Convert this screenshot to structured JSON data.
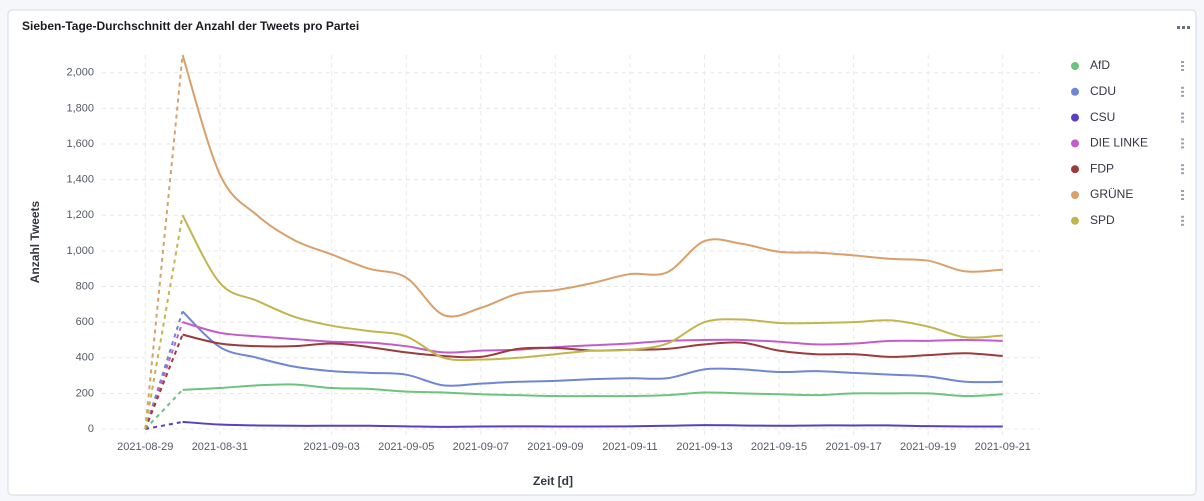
{
  "chart_data": {
    "type": "line",
    "title": "Sieben-Tage-Durchschnitt der Anzahl der Tweets pro Partei",
    "xlabel": "Zeit [d]",
    "ylabel": "Anzahl Tweets",
    "x": [
      "2021-08-29",
      "2021-08-30",
      "2021-08-31",
      "2021-09-01",
      "2021-09-02",
      "2021-09-03",
      "2021-09-04",
      "2021-09-05",
      "2021-09-06",
      "2021-09-07",
      "2021-09-08",
      "2021-09-09",
      "2021-09-10",
      "2021-09-11",
      "2021-09-12",
      "2021-09-13",
      "2021-09-14",
      "2021-09-15",
      "2021-09-16",
      "2021-09-17",
      "2021-09-18",
      "2021-09-19",
      "2021-09-20",
      "2021-09-21"
    ],
    "xlim": [
      "2021-08-28",
      "2021-09-22"
    ],
    "xticks": [
      "2021-08-29",
      "2021-08-31",
      "2021-09-03",
      "2021-09-05",
      "2021-09-07",
      "2021-09-09",
      "2021-09-11",
      "2021-09-13",
      "2021-09-15",
      "2021-09-17",
      "2021-09-19",
      "2021-09-21"
    ],
    "ylim": [
      0,
      2100
    ],
    "yticks": [
      0,
      200,
      400,
      600,
      800,
      {
        "value": 1000,
        "label": "1,000"
      },
      {
        "value": 1200,
        "label": "1,200"
      },
      {
        "value": 1400,
        "label": "1,400"
      },
      {
        "value": 1600,
        "label": "1,600"
      },
      {
        "value": 1800,
        "label": "1,800"
      },
      {
        "value": 2000,
        "label": "2,000"
      }
    ],
    "grid": true,
    "legend": "right",
    "incomplete_until": "2021-08-30",
    "series": [
      {
        "name": "AfD",
        "color": "#6dc47e",
        "values": [
          0,
          220,
          230,
          245,
          250,
          230,
          225,
          210,
          205,
          195,
          190,
          185,
          185,
          185,
          190,
          205,
          200,
          195,
          190,
          200,
          200,
          200,
          185,
          195
        ]
      },
      {
        "name": "CDU",
        "color": "#6f86d6",
        "values": [
          0,
          660,
          460,
          400,
          350,
          325,
          315,
          305,
          245,
          255,
          265,
          270,
          280,
          285,
          285,
          335,
          335,
          320,
          325,
          315,
          305,
          295,
          265,
          265
        ]
      },
      {
        "name": "CSU",
        "color": "#5b3fc0",
        "values": [
          0,
          40,
          25,
          20,
          18,
          18,
          18,
          15,
          12,
          14,
          15,
          14,
          14,
          15,
          18,
          22,
          20,
          18,
          20,
          20,
          20,
          16,
          14,
          14
        ]
      },
      {
        "name": "DIE LINKE",
        "color": "#c25cc9",
        "values": [
          0,
          600,
          540,
          520,
          505,
          490,
          485,
          465,
          430,
          440,
          445,
          460,
          470,
          480,
          495,
          500,
          500,
          490,
          475,
          480,
          495,
          495,
          500,
          495
        ]
      },
      {
        "name": "FDP",
        "color": "#9b3b3b",
        "values": [
          0,
          530,
          480,
          465,
          465,
          480,
          460,
          430,
          410,
          405,
          450,
          455,
          440,
          445,
          450,
          475,
          485,
          440,
          420,
          420,
          405,
          415,
          425,
          410
        ]
      },
      {
        "name": "GRÜNE",
        "color": "#d9a06b",
        "values": [
          0,
          2100,
          1430,
          1200,
          1060,
          980,
          900,
          850,
          640,
          680,
          760,
          780,
          820,
          870,
          880,
          1055,
          1040,
          995,
          990,
          975,
          955,
          945,
          885,
          895
        ]
      },
      {
        "name": "SPD",
        "color": "#c2b54e",
        "values": [
          0,
          1200,
          820,
          720,
          630,
          580,
          550,
          520,
          400,
          390,
          400,
          420,
          440,
          445,
          480,
          600,
          615,
          595,
          595,
          600,
          610,
          575,
          515,
          525
        ]
      }
    ]
  }
}
